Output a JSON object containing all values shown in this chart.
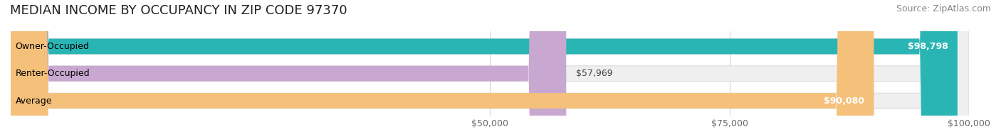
{
  "title": "MEDIAN INCOME BY OCCUPANCY IN ZIP CODE 97370",
  "source": "Source: ZipAtlas.com",
  "categories": [
    "Owner-Occupied",
    "Renter-Occupied",
    "Average"
  ],
  "values": [
    98798,
    57969,
    90080
  ],
  "bar_colors": [
    "#2ab5b5",
    "#c8a8d0",
    "#f5c07a"
  ],
  "bar_bg_color": "#f0f0f0",
  "value_labels": [
    "$98,798",
    "$57,969",
    "$90,080"
  ],
  "xlim": [
    0,
    100000
  ],
  "xticks": [
    50000,
    75000,
    100000
  ],
  "xtick_labels": [
    "$50,000",
    "$75,000",
    "$100,000"
  ],
  "title_fontsize": 13,
  "source_fontsize": 9,
  "label_fontsize": 9,
  "bar_label_fontsize": 9,
  "background_color": "#ffffff",
  "bar_height": 0.55,
  "bar_bg_alpha": 1.0
}
